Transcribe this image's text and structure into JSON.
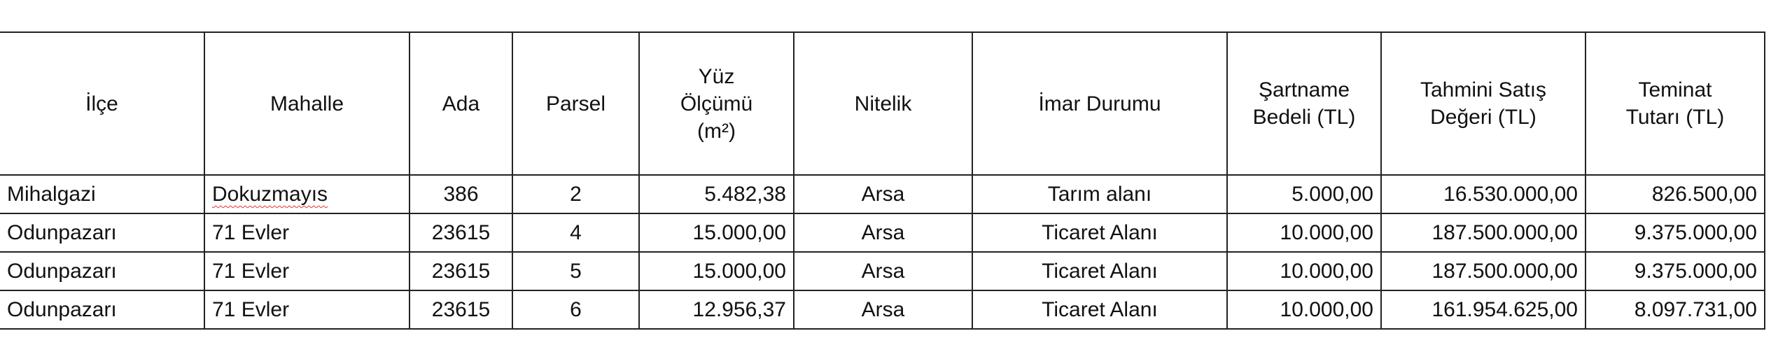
{
  "table": {
    "headers": [
      {
        "line1": "İlçe"
      },
      {
        "line1": "Mahalle"
      },
      {
        "line1": "Ada"
      },
      {
        "line1": "Parsel"
      },
      {
        "line1": "Yüz",
        "line2": "Ölçümü",
        "line3": "(m²)"
      },
      {
        "line1": "Nitelik"
      },
      {
        "line1": "İmar Durumu"
      },
      {
        "line1": "Şartname",
        "line2": "Bedeli (TL)"
      },
      {
        "line1": "Tahmini Satış",
        "line2": "Değeri (TL)"
      },
      {
        "line1": "Teminat",
        "line2": "Tutarı (TL)"
      }
    ],
    "rows": [
      [
        "Mihalgazi",
        "Dokuzmayıs",
        "386",
        "2",
        "5.482,38",
        "Arsa",
        "Tarım alanı",
        "5.000,00",
        "16.530.000,00",
        "826.500,00"
      ],
      [
        "Odunpazarı",
        "71 Evler",
        "23615",
        "4",
        "15.000,00",
        "Arsa",
        "Ticaret Alanı",
        "10.000,00",
        "187.500.000,00",
        "9.375.000,00"
      ],
      [
        "Odunpazarı",
        "71 Evler",
        "23615",
        "5",
        "15.000,00",
        "Arsa",
        "Ticaret Alanı",
        "10.000,00",
        "187.500.000,00",
        "9.375.000,00"
      ],
      [
        "Odunpazarı",
        "71 Evler",
        "23615",
        "6",
        "12.956,37",
        "Arsa",
        "Ticaret Alanı",
        "10.000,00",
        "161.954.625,00",
        "8.097.731,00"
      ]
    ]
  }
}
